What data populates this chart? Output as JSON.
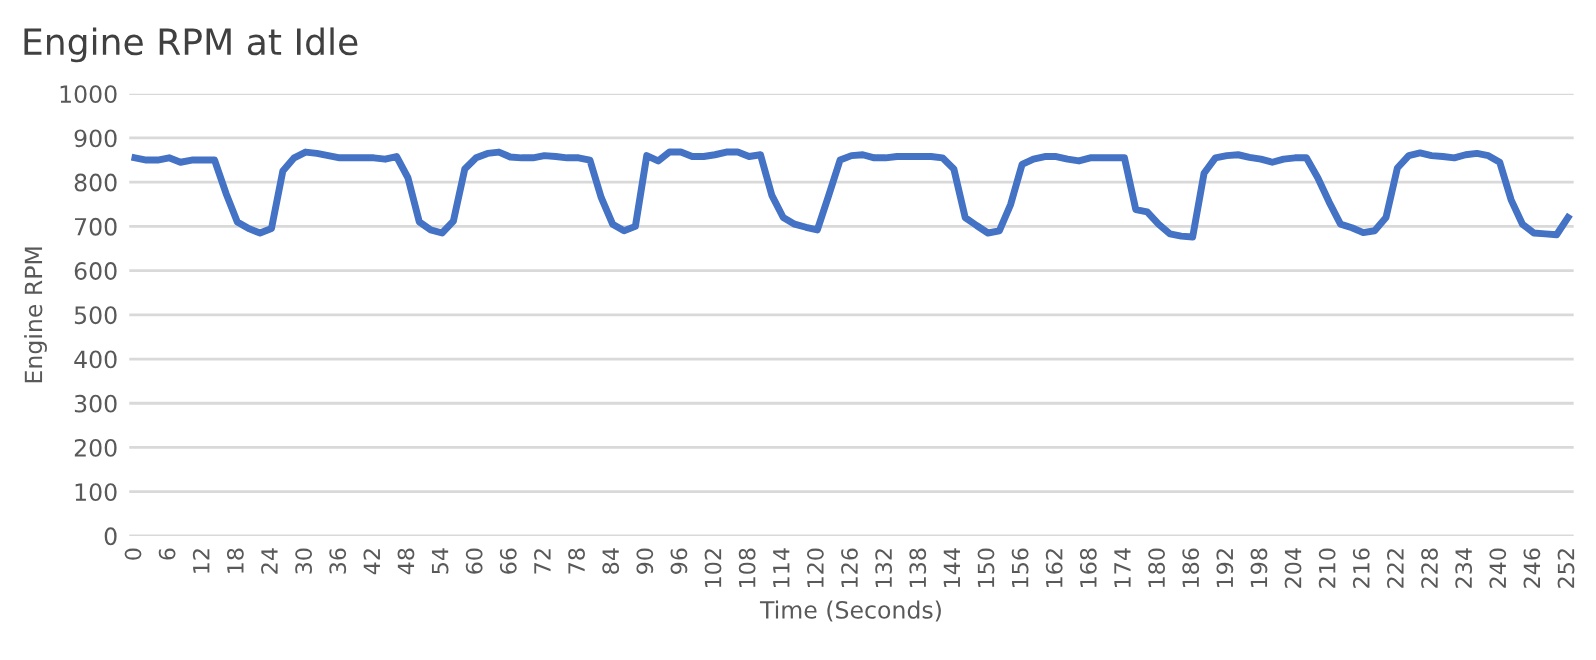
{
  "chart_data": {
    "type": "line",
    "title": "Engine RPM at Idle",
    "xlabel": "Time (Seconds)",
    "ylabel": "Engine RPM",
    "categories": [
      "0",
      null,
      null,
      "6",
      null,
      null,
      "12",
      null,
      null,
      "18",
      null,
      null,
      "24",
      null,
      null,
      "30",
      null,
      null,
      "36",
      null,
      null,
      "42",
      null,
      null,
      "48",
      null,
      null,
      "54",
      null,
      null,
      "60",
      null,
      null,
      "66",
      null,
      null,
      "72",
      null,
      null,
      "78",
      null,
      null,
      "84",
      null,
      null,
      "90",
      null,
      null,
      "96",
      null,
      null,
      "102",
      null,
      null,
      "108",
      null,
      null,
      "114",
      null,
      null,
      "120",
      null,
      null,
      "126",
      null,
      null,
      "132",
      null,
      null,
      "138",
      null,
      null,
      "144",
      null,
      null,
      "150",
      null,
      null,
      "156",
      null,
      null,
      "162",
      null,
      null,
      "168",
      null,
      null,
      "174",
      null,
      null,
      "180",
      null,
      null,
      "186",
      null,
      null,
      "192",
      null,
      null,
      "198",
      null,
      null,
      "204",
      null,
      null,
      "210",
      null,
      null,
      "216",
      null,
      null,
      "222",
      null,
      null,
      "228",
      null,
      null,
      "234",
      null,
      null,
      "240",
      null,
      null,
      "246",
      null,
      null,
      "252"
    ],
    "series": [
      {
        "color": "#4472c4",
        "values": [
          855,
          850,
          850,
          855,
          845,
          850,
          850,
          850,
          775,
          710,
          695,
          685,
          695,
          825,
          855,
          868,
          865,
          860,
          855,
          855,
          855,
          855,
          852,
          858,
          810,
          710,
          692,
          685,
          712,
          830,
          855,
          865,
          868,
          857,
          855,
          855,
          860,
          858,
          855,
          855,
          850,
          765,
          705,
          690,
          700,
          860,
          848,
          868,
          868,
          858,
          858,
          862,
          868,
          868,
          858,
          862,
          770,
          720,
          705,
          698,
          692,
          770,
          850,
          860,
          862,
          855,
          855,
          858,
          858,
          858,
          858,
          855,
          830,
          720,
          702,
          685,
          690,
          750,
          840,
          852,
          858,
          858,
          852,
          848,
          855,
          855,
          855,
          855,
          738,
          733,
          705,
          683,
          678,
          676,
          820,
          855,
          860,
          862,
          856,
          852,
          845,
          852,
          855,
          855,
          810,
          755,
          705,
          697,
          686,
          690,
          720,
          832,
          860,
          866,
          860,
          858,
          855,
          862,
          865,
          860,
          845,
          760,
          705,
          685,
          683,
          681,
          720
        ]
      }
    ],
    "ylim": [
      0,
      1000
    ],
    "yticks": [
      0,
      100,
      200,
      300,
      400,
      500,
      600,
      700,
      800,
      900,
      1000
    ],
    "grid": "y",
    "marker": "none",
    "line_style": "solid"
  }
}
